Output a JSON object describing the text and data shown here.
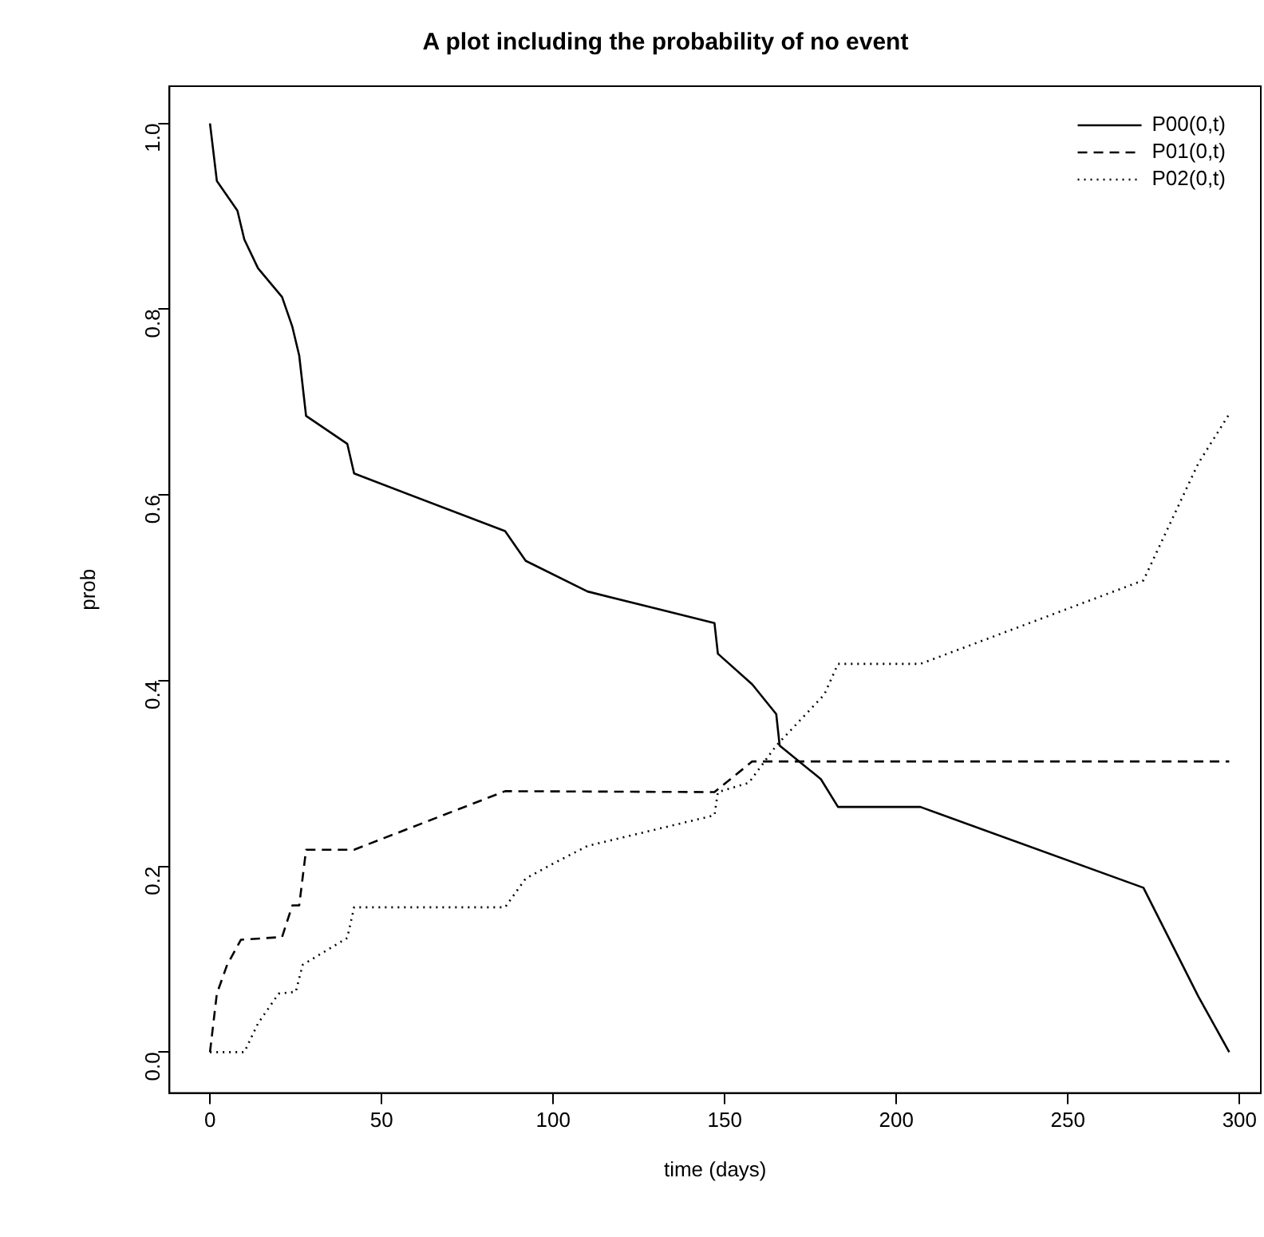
{
  "chart_data": {
    "type": "line",
    "title": "A plot including the probability of no event",
    "xlabel": "time (days)",
    "ylabel": "prob",
    "xlim": [
      -11.8,
      306.2
    ],
    "xticks": [
      0,
      50,
      100,
      150,
      200,
      250,
      300
    ],
    "ylim": [
      -0.044,
      1.04
    ],
    "yticks": [
      {
        "value": 0,
        "label": "0.0"
      },
      {
        "value": 0.2,
        "label": "0.2"
      },
      {
        "value": 0.4,
        "label": "0.4"
      },
      {
        "value": 0.6,
        "label": "0.6"
      },
      {
        "value": 0.8,
        "label": "0.8"
      },
      {
        "value": 1,
        "label": "1.0"
      }
    ],
    "legend": "top right",
    "marker": "none",
    "grid": false,
    "series": [
      {
        "name": "P00(0,t)",
        "color": "#000000",
        "line_style": "solid",
        "x": [
          0,
          2,
          8,
          10,
          14,
          21,
          24,
          26,
          28,
          40,
          42,
          86,
          92,
          110,
          147,
          148,
          158,
          165,
          166,
          178,
          183,
          207,
          272,
          288,
          297
        ],
        "values": [
          1.0,
          0.938,
          0.906,
          0.875,
          0.844,
          0.813,
          0.781,
          0.75,
          0.685,
          0.655,
          0.623,
          0.561,
          0.529,
          0.496,
          0.462,
          0.429,
          0.396,
          0.364,
          0.33,
          0.294,
          0.264,
          0.264,
          0.177,
          0.06,
          0
        ]
      },
      {
        "name": "P01(0,t)",
        "color": "#000000",
        "line_style": "dashed",
        "x": [
          0,
          2,
          5,
          9,
          21,
          24,
          26,
          28,
          42,
          86,
          147,
          158,
          297
        ],
        "values": [
          0,
          0.063,
          0.094,
          0.121,
          0.124,
          0.158,
          0.158,
          0.218,
          0.218,
          0.281,
          0.28,
          0.313,
          0.313
        ]
      },
      {
        "name": "P02(0,t)",
        "color": "#000000",
        "line_style": "dotted",
        "x": [
          0,
          10,
          14,
          20,
          25,
          27,
          40,
          42,
          86,
          92,
          100,
          110,
          147,
          148,
          157,
          165,
          179,
          183,
          207,
          272,
          288,
          297
        ],
        "values": [
          0,
          0,
          0.031,
          0.063,
          0.065,
          0.094,
          0.123,
          0.156,
          0.156,
          0.187,
          0.203,
          0.222,
          0.255,
          0.28,
          0.29,
          0.33,
          0.385,
          0.418,
          0.418,
          0.508,
          0.634,
          0.687
        ]
      }
    ]
  }
}
